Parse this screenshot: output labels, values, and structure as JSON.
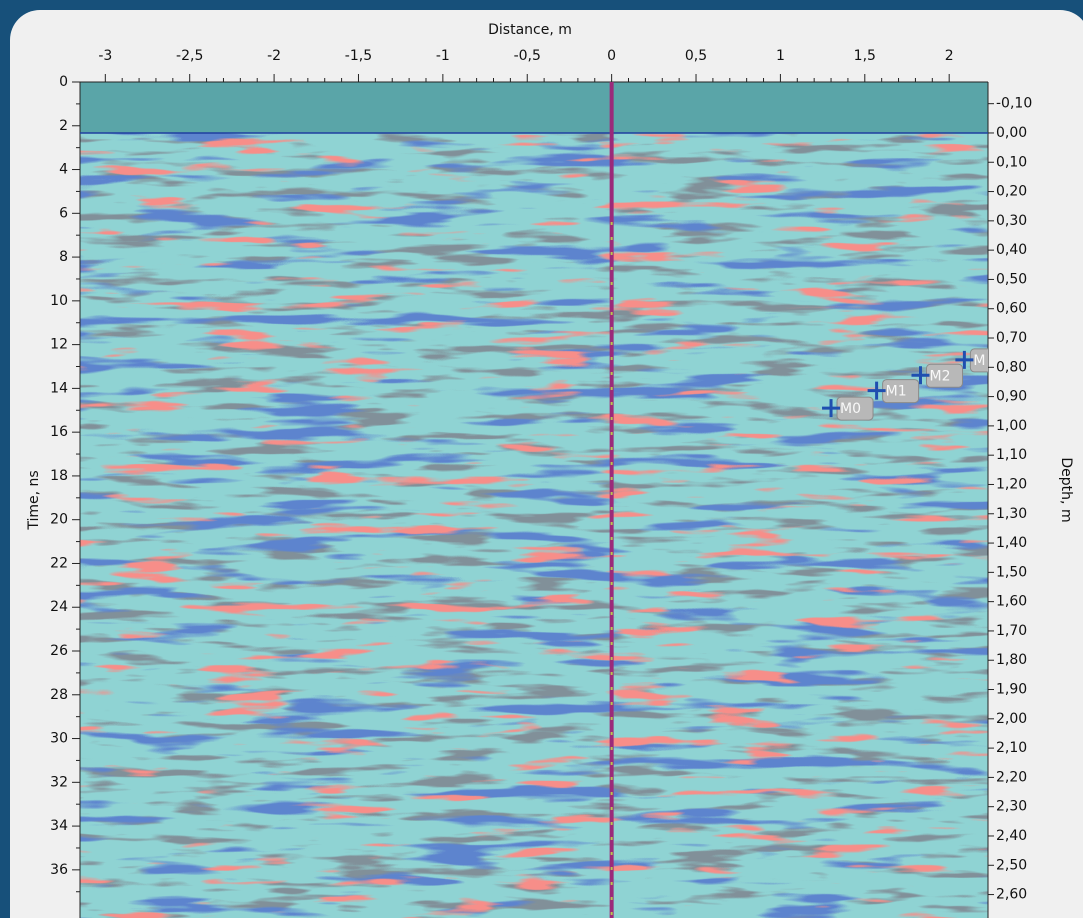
{
  "chart_data": {
    "type": "radargram",
    "xlabel": "Distance, m",
    "ylabel": "Time, ns",
    "y2label": "Depth, m",
    "xlim": [
      -3.15,
      2.23
    ],
    "xticks": [
      -3,
      {
        "value": -2.5,
        "label": "-2,5"
      },
      -2,
      {
        "value": -1.5,
        "label": "-1,5"
      },
      -1,
      {
        "value": -0.5,
        "label": "-0,5"
      },
      0,
      {
        "value": 0.5,
        "label": "0,5"
      },
      1,
      {
        "value": 1.5,
        "label": "1,5"
      },
      2
    ],
    "ylim": [
      0,
      38.2
    ],
    "yticks": [
      0,
      2,
      4,
      6,
      8,
      10,
      12,
      14,
      16,
      18,
      20,
      22,
      24,
      26,
      28,
      30,
      32,
      34,
      36
    ],
    "y2lim": [
      -0.174,
      2.68
    ],
    "y2ticks": [
      {
        "value": -0.1,
        "label": "-0,10"
      },
      {
        "value": 0,
        "label": "0,00"
      },
      {
        "value": 0.1,
        "label": "0,10"
      },
      {
        "value": 0.2,
        "label": "0,20"
      },
      {
        "value": 0.3,
        "label": "0,30"
      },
      {
        "value": 0.4,
        "label": "0,40"
      },
      {
        "value": 0.5,
        "label": "0,50"
      },
      {
        "value": 0.6,
        "label": "0,60"
      },
      {
        "value": 0.7,
        "label": "0,70"
      },
      {
        "value": 0.8,
        "label": "0,80"
      },
      {
        "value": 0.9,
        "label": "0,90"
      },
      {
        "value": 1.0,
        "label": "1,00"
      },
      {
        "value": 1.1,
        "label": "1,10"
      },
      {
        "value": 1.2,
        "label": "1,20"
      },
      {
        "value": 1.3,
        "label": "1,30"
      },
      {
        "value": 1.4,
        "label": "1,40"
      },
      {
        "value": 1.5,
        "label": "1,50"
      },
      {
        "value": 1.6,
        "label": "1,60"
      },
      {
        "value": 1.7,
        "label": "1,70"
      },
      {
        "value": 1.8,
        "label": "1,80"
      },
      {
        "value": 1.9,
        "label": "1,90"
      },
      {
        "value": 2.0,
        "label": "2,00"
      },
      {
        "value": 2.1,
        "label": "2,10"
      },
      {
        "value": 2.2,
        "label": "2,20"
      },
      {
        "value": 2.3,
        "label": "2,30"
      },
      {
        "value": 2.4,
        "label": "2,40"
      },
      {
        "value": 2.5,
        "label": "2,50"
      },
      {
        "value": 2.6,
        "label": "2,60"
      }
    ],
    "markers": [
      {
        "name": "M0",
        "x": 1.3,
        "y": 14.9
      },
      {
        "name": "M1",
        "x": 1.57,
        "y": 14.1
      },
      {
        "name": "M2",
        "x": 1.83,
        "y": 13.4
      },
      {
        "name": "M",
        "x": 2.09,
        "y": 12.7
      }
    ],
    "marker_color": "#1f4fb0"
  }
}
